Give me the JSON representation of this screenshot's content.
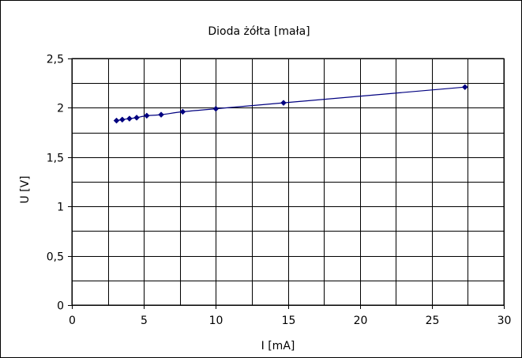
{
  "chart_data": {
    "type": "scatter",
    "title": "Dioda żółta [mała]",
    "xlabel": "I [mA]",
    "ylabel": "U [V]",
    "xlim": [
      0,
      30
    ],
    "ylim": [
      0,
      2.5
    ],
    "x_ticks": [
      0,
      5,
      10,
      15,
      20,
      25,
      30
    ],
    "x_tick_labels": [
      "0",
      "5",
      "10",
      "15",
      "20",
      "25",
      "30"
    ],
    "y_ticks": [
      0,
      0.5,
      1,
      1.5,
      2,
      2.5
    ],
    "y_tick_labels": [
      "0",
      "0,5",
      "1",
      "1,5",
      "2",
      "2,5"
    ],
    "grid": true,
    "minor_x_grid": [
      2.5,
      7.5,
      12.5,
      17.5,
      22.5,
      27.5
    ],
    "minor_y_grid": [
      0.25,
      0.75,
      1.25,
      1.75,
      2.25
    ],
    "series": [
      {
        "color": "#000080",
        "marker": "diamond",
        "line": "smooth",
        "x": [
          3.1,
          3.5,
          4.0,
          4.5,
          5.2,
          6.2,
          7.7,
          10.0,
          14.7,
          27.3
        ],
        "y": [
          1.87,
          1.88,
          1.89,
          1.9,
          1.92,
          1.93,
          1.96,
          1.99,
          2.05,
          2.21
        ]
      }
    ]
  }
}
